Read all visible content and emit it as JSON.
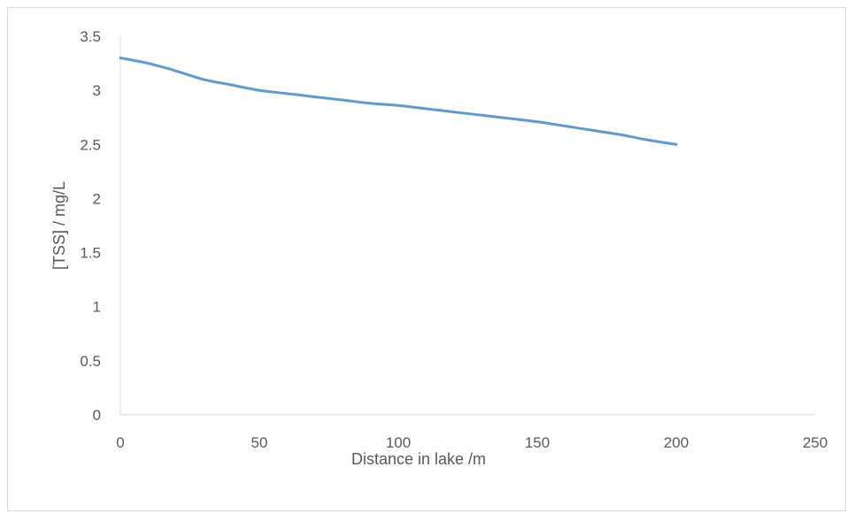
{
  "chart_data": {
    "type": "line",
    "title": "",
    "xlabel": "Distance in lake /m",
    "ylabel": "[TSS] / mg/L",
    "xlim": [
      0,
      250
    ],
    "ylim": [
      0,
      3.5
    ],
    "x_ticks": [
      "0",
      "50",
      "100",
      "150",
      "200",
      "250"
    ],
    "y_ticks": [
      "0",
      "0.5",
      "1",
      "1.5",
      "2",
      "2.5",
      "3",
      "3.5"
    ],
    "grid": false,
    "legend": "none",
    "series": [
      {
        "color": "#5b9bd5",
        "x": [
          0,
          10,
          20,
          30,
          40,
          50,
          60,
          70,
          80,
          90,
          100,
          110,
          120,
          130,
          140,
          150,
          160,
          170,
          180,
          190,
          200
        ],
        "y": [
          3.3,
          3.25,
          3.18,
          3.1,
          3.05,
          3.0,
          2.97,
          2.94,
          2.91,
          2.88,
          2.86,
          2.83,
          2.8,
          2.77,
          2.74,
          2.71,
          2.67,
          2.63,
          2.59,
          2.54,
          2.5
        ]
      }
    ]
  }
}
